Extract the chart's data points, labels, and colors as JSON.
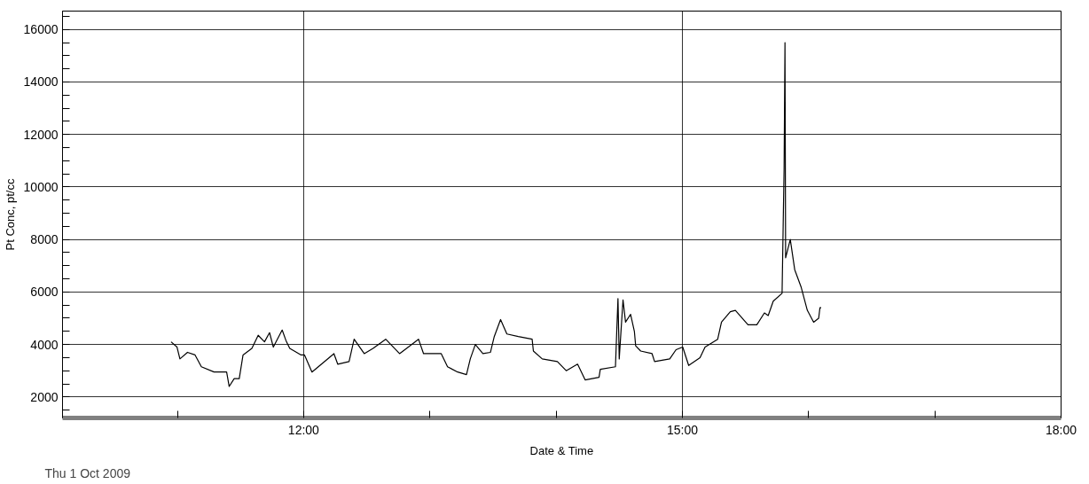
{
  "chart_data": {
    "type": "line",
    "xlabel": "Date & Time",
    "ylabel": "Pt Conc, pt/cc",
    "annotations": [
      "Thu 1 Oct 2009"
    ],
    "xlim": [
      10.09,
      18.0
    ],
    "ylim": [
      1200,
      16700
    ],
    "xticks": [
      {
        "value": 11,
        "label": null
      },
      {
        "value": 12,
        "label": "12:00"
      },
      {
        "value": 13,
        "label": null
      },
      {
        "value": 14,
        "label": null
      },
      {
        "value": 15,
        "label": "15:00"
      },
      {
        "value": 16,
        "label": null
      },
      {
        "value": 17,
        "label": null
      },
      {
        "value": 18,
        "label": "18:00"
      }
    ],
    "yticks": [
      {
        "value": 1500,
        "label": null
      },
      2000,
      {
        "value": 2500,
        "label": null
      },
      {
        "value": 3000,
        "label": null
      },
      {
        "value": 3500,
        "label": null
      },
      4000,
      {
        "value": 4500,
        "label": null
      },
      {
        "value": 5000,
        "label": null
      },
      {
        "value": 5500,
        "label": null
      },
      6000,
      {
        "value": 6500,
        "label": null
      },
      {
        "value": 7000,
        "label": null
      },
      {
        "value": 7500,
        "label": null
      },
      8000,
      {
        "value": 8500,
        "label": null
      },
      {
        "value": 9000,
        "label": null
      },
      {
        "value": 9500,
        "label": null
      },
      10000,
      {
        "value": 10500,
        "label": null
      },
      {
        "value": 11000,
        "label": null
      },
      {
        "value": 11500,
        "label": null
      },
      12000,
      {
        "value": 12500,
        "label": null
      },
      {
        "value": 13000,
        "label": null
      },
      {
        "value": 13500,
        "label": null
      },
      14000,
      {
        "value": 14500,
        "label": null
      },
      {
        "value": 15000,
        "label": null
      },
      {
        "value": 15500,
        "label": null
      },
      16000,
      {
        "value": 16500,
        "label": null
      }
    ],
    "grid": true,
    "marker": "none",
    "line_style": "solid",
    "series": [
      {
        "color": "#000000",
        "x": [
          10.95,
          10.997,
          11.02,
          11.08,
          11.14,
          11.19,
          11.29,
          11.39,
          11.41,
          11.45,
          11.49,
          11.52,
          11.59,
          11.64,
          11.69,
          11.73,
          11.76,
          11.83,
          11.86,
          11.89,
          11.98,
          12.007,
          12.066,
          12.24,
          12.27,
          12.36,
          12.4,
          12.48,
          12.55,
          12.65,
          12.76,
          12.91,
          12.95,
          13.09,
          13.14,
          13.22,
          13.29,
          13.32,
          13.36,
          13.42,
          13.48,
          13.51,
          13.56,
          13.61,
          13.7,
          13.81,
          13.82,
          13.89,
          14.01,
          14.08,
          14.17,
          14.23,
          14.34,
          14.35,
          14.47,
          14.48,
          14.49,
          14.5,
          14.53,
          14.55,
          14.59,
          14.62,
          14.63,
          14.67,
          14.76,
          14.78,
          14.9,
          14.95,
          15.003,
          15.05,
          15.14,
          15.18,
          15.28,
          15.31,
          15.38,
          15.42,
          15.52,
          15.59,
          15.65,
          15.68,
          15.72,
          15.79,
          15.806,
          15.813,
          15.818,
          15.855,
          15.89,
          15.94,
          15.99,
          16.04,
          16.08,
          16.09,
          16.1
        ],
        "values": [
          4100,
          3900,
          3450,
          3700,
          3600,
          3150,
          2950,
          2950,
          2400,
          2700,
          2700,
          3600,
          3850,
          4350,
          4100,
          4450,
          3900,
          4550,
          4150,
          3850,
          3600,
          3600,
          2950,
          3650,
          3250,
          3350,
          4200,
          3650,
          3850,
          4200,
          3650,
          4200,
          3650,
          3650,
          3150,
          2950,
          2850,
          3450,
          4000,
          3650,
          3700,
          4300,
          4950,
          4400,
          4300,
          4200,
          3750,
          3450,
          3350,
          3000,
          3250,
          2650,
          2750,
          3050,
          3150,
          4450,
          5750,
          3450,
          5700,
          4850,
          5150,
          4500,
          3950,
          3750,
          3650,
          3350,
          3450,
          3800,
          3900,
          3200,
          3500,
          3900,
          4200,
          4850,
          5250,
          5300,
          4750,
          4750,
          5200,
          5100,
          5650,
          5950,
          10700,
          15500,
          7300,
          8000,
          6850,
          6200,
          5300,
          4850,
          5000,
          5400,
          5400
        ]
      }
    ]
  }
}
